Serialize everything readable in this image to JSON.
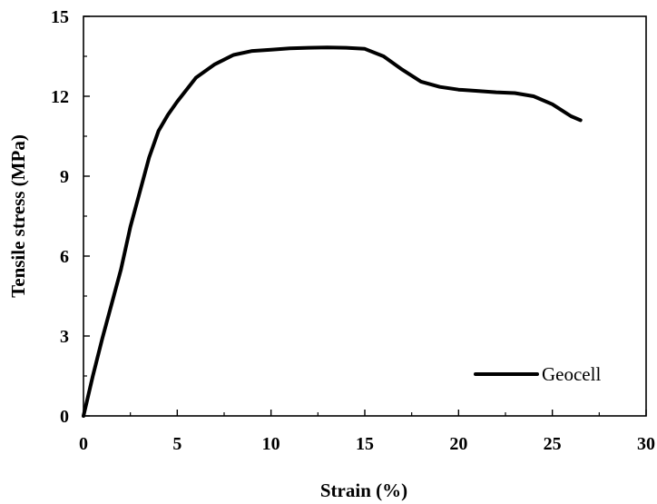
{
  "chart_data": {
    "type": "line",
    "xlabel": "Strain (%)",
    "ylabel": "Tensile stress (MPa)",
    "xlim": [
      0,
      30
    ],
    "ylim": [
      0,
      15
    ],
    "x_ticks": [
      "0",
      "5",
      "10",
      "15",
      "20",
      "25",
      "30"
    ],
    "y_ticks": [
      "0",
      "3",
      "6",
      "9",
      "12",
      "15"
    ],
    "grid": false,
    "legend_position": "bottom-right",
    "series": [
      {
        "name": "Geocell",
        "color": "#000000",
        "x": [
          0,
          0.5,
          1,
          1.5,
          2,
          2.5,
          3,
          3.5,
          4,
          4.5,
          5,
          6,
          7,
          8,
          9,
          10,
          11,
          12,
          13,
          14,
          15,
          16,
          17,
          18,
          19,
          20,
          21,
          22,
          23,
          24,
          25,
          26,
          26.5
        ],
        "y": [
          0,
          1.5,
          2.9,
          4.2,
          5.5,
          7.1,
          8.4,
          9.7,
          10.7,
          11.3,
          11.8,
          12.7,
          13.2,
          13.55,
          13.7,
          13.75,
          13.8,
          13.82,
          13.83,
          13.82,
          13.78,
          13.5,
          13.0,
          12.55,
          12.35,
          12.25,
          12.2,
          12.15,
          12.12,
          12.0,
          11.7,
          11.25,
          11.1
        ]
      }
    ]
  }
}
